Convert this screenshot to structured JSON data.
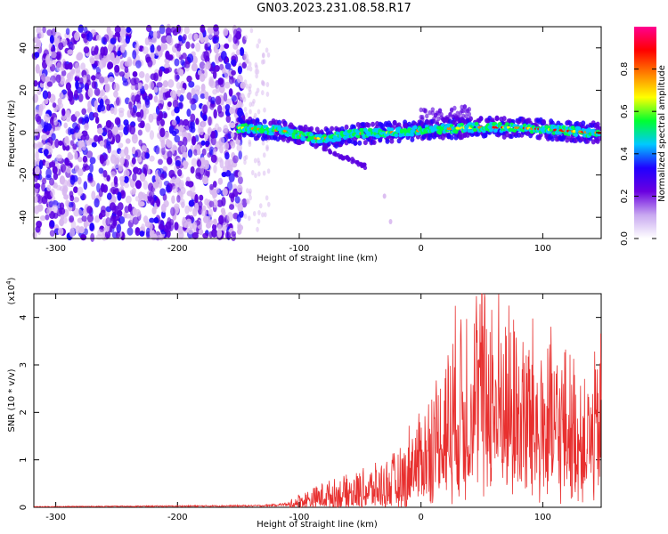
{
  "title": "GN03.2023.231.08.58.R17",
  "chart_data": [
    {
      "type": "heatmap",
      "xlabel": "Height of straight line (km)",
      "ylabel": "Frequency (Hz)",
      "xlim": [
        -318,
        148
      ],
      "ylim": [
        -50,
        50
      ],
      "xticks": [
        -300,
        -200,
        -100,
        0,
        100
      ],
      "yticks": [
        -40,
        -20,
        0,
        20,
        40
      ],
      "colorbar": {
        "label": "Normalized spectral amplitude",
        "range": [
          0,
          1
        ],
        "ticks": [
          0.0,
          0.2,
          0.4,
          0.6,
          0.8
        ],
        "colormap": [
          "#d8b8f0",
          "#5a00e0",
          "#2000ff",
          "#00c8ff",
          "#00ff40",
          "#ffff00",
          "#ff8000",
          "#ff0000",
          "#ff00a0"
        ]
      },
      "features": {
        "noise_region_x": [
          -318,
          -145
        ],
        "sparse_noise_x": [
          -145,
          -125
        ],
        "band_center_freq": 1,
        "band_x": [
          -150,
          148
        ],
        "branch": {
          "x": [
            -80,
            -45
          ],
          "freq": [
            -8,
            -16
          ]
        },
        "isolated_points": [
          {
            "x": -30,
            "freq": -30
          },
          {
            "x": -25,
            "freq": -42
          }
        ]
      }
    },
    {
      "type": "line",
      "xlabel": "Height of straight line (km)",
      "ylabel": "SNR (10 * v/v)",
      "scale_label": "(x10",
      "scale_exp": "4",
      "xlim": [
        -318,
        148
      ],
      "ylim": [
        0,
        4.5
      ],
      "xticks": [
        -300,
        -200,
        -100,
        0,
        100
      ],
      "yticks": [
        0,
        1,
        2,
        3,
        4
      ],
      "series": [
        {
          "color": "#e8302f",
          "envelope_x": [
            -318,
            -130,
            -110,
            -100,
            -90,
            -80,
            -60,
            -40,
            -20,
            0,
            10,
            20,
            30,
            40,
            50,
            60,
            80,
            100,
            120,
            130,
            140,
            148
          ],
          "envelope_y": [
            0.02,
            0.05,
            0.1,
            0.3,
            0.4,
            0.55,
            0.7,
            0.9,
            1.2,
            1.8,
            2.3,
            3.0,
            3.6,
            4.2,
            4.4,
            4.0,
            3.6,
            3.2,
            2.9,
            2.6,
            2.5,
            3.2
          ]
        }
      ]
    }
  ]
}
